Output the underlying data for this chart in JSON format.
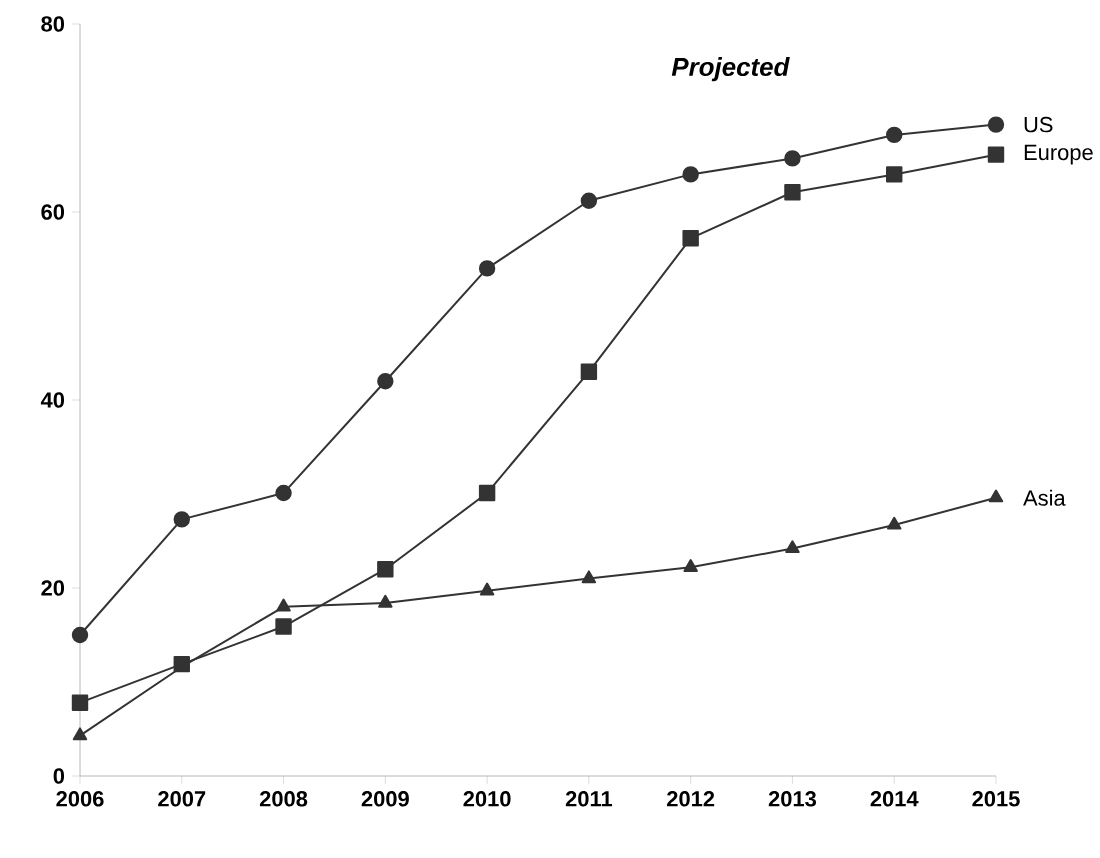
{
  "chart_data": {
    "type": "line",
    "categories": [
      "2006",
      "2007",
      "2008",
      "2009",
      "2010",
      "2011",
      "2012",
      "2013",
      "2014",
      "2015"
    ],
    "ylim": [
      0,
      80
    ],
    "yticks": [
      0,
      20,
      40,
      60,
      80
    ],
    "annotations": [
      "Projected"
    ],
    "series": [
      {
        "name": "US",
        "color": "#333333",
        "marker": "circle",
        "values": [
          15,
          27.3,
          30.1,
          42,
          54,
          61.2,
          64,
          65.7,
          68.2,
          69.3
        ]
      },
      {
        "name": "Europe",
        "color": "#333333",
        "marker": "square",
        "values": [
          7.8,
          11.9,
          15.9,
          22,
          30.1,
          43,
          57.2,
          62.1,
          64,
          66.1
        ]
      },
      {
        "name": "Asia",
        "color": "#333333",
        "marker": "triangle",
        "values": [
          4.3,
          11.6,
          18,
          18.4,
          19.7,
          21,
          22.2,
          24.2,
          26.7,
          29.6
        ]
      }
    ]
  }
}
